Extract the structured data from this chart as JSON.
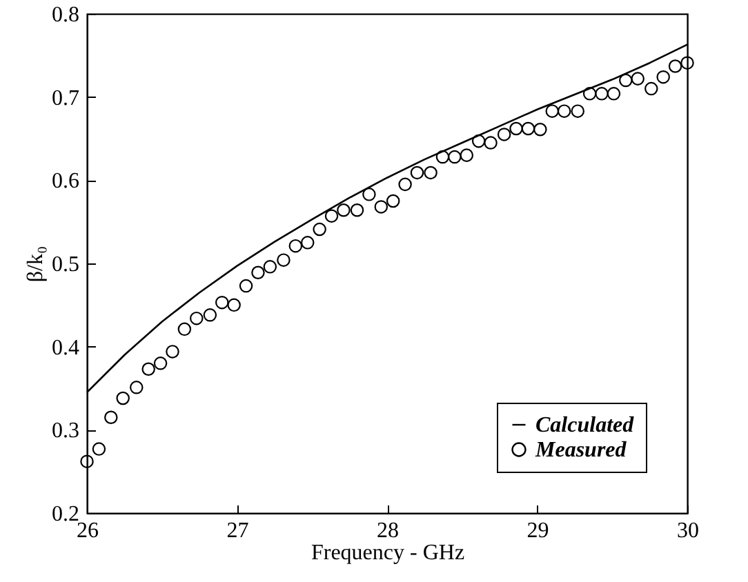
{
  "chart_data": {
    "type": "line",
    "xlabel": "Frequency - GHz",
    "ylabel": "β/k₀",
    "xlim": [
      26,
      30
    ],
    "xticks": [
      26,
      27,
      28,
      29,
      30
    ],
    "ylim": [
      0.2,
      0.8
    ],
    "yticks": [
      0.2,
      0.3,
      0.4,
      0.5,
      0.6,
      0.7,
      0.8
    ],
    "grid": false,
    "legend": "bottom right",
    "series": [
      {
        "name": "Calculated",
        "color": "#000000",
        "marker": "none",
        "x": [
          26,
          26.25,
          26.5,
          26.75,
          27,
          27.25,
          27.5,
          27.75,
          28,
          28.25,
          28.5,
          28.75,
          29,
          29.25,
          29.5,
          29.75,
          30
        ],
        "values": [
          0.345,
          0.39,
          0.43,
          0.465,
          0.497,
          0.526,
          0.553,
          0.579,
          0.603,
          0.625,
          0.645,
          0.665,
          0.685,
          0.703,
          0.721,
          0.741,
          0.763
        ]
      },
      {
        "name": "Measured",
        "type": "scatter",
        "color": "#000000",
        "marker": "circle",
        "x": [
          26,
          26.08,
          26.16,
          26.24,
          26.33,
          26.41,
          26.49,
          26.57,
          26.65,
          26.73,
          26.82,
          26.9,
          26.98,
          27.06,
          27.14,
          27.22,
          27.31,
          27.39,
          27.47,
          27.55,
          27.63,
          27.71,
          27.8,
          27.88,
          27.96,
          28.04,
          28.12,
          28.2,
          28.29,
          28.37,
          28.45,
          28.53,
          28.61,
          28.69,
          28.78,
          28.86,
          28.94,
          29.02,
          29.1,
          29.18,
          29.27,
          29.35,
          29.43,
          29.51,
          29.59,
          29.67,
          29.76,
          29.84,
          29.92,
          30
        ],
        "values": [
          0.262,
          0.277,
          0.315,
          0.338,
          0.351,
          0.373,
          0.38,
          0.394,
          0.421,
          0.434,
          0.438,
          0.453,
          0.45,
          0.473,
          0.489,
          0.496,
          0.504,
          0.521,
          0.525,
          0.541,
          0.557,
          0.564,
          0.564,
          0.583,
          0.568,
          0.575,
          0.595,
          0.609,
          0.609,
          0.628,
          0.628,
          0.63,
          0.647,
          0.645,
          0.655,
          0.662,
          0.662,
          0.661,
          0.683,
          0.683,
          0.683,
          0.704,
          0.704,
          0.704,
          0.72,
          0.722,
          0.71,
          0.724,
          0.737,
          0.741
        ]
      }
    ]
  }
}
